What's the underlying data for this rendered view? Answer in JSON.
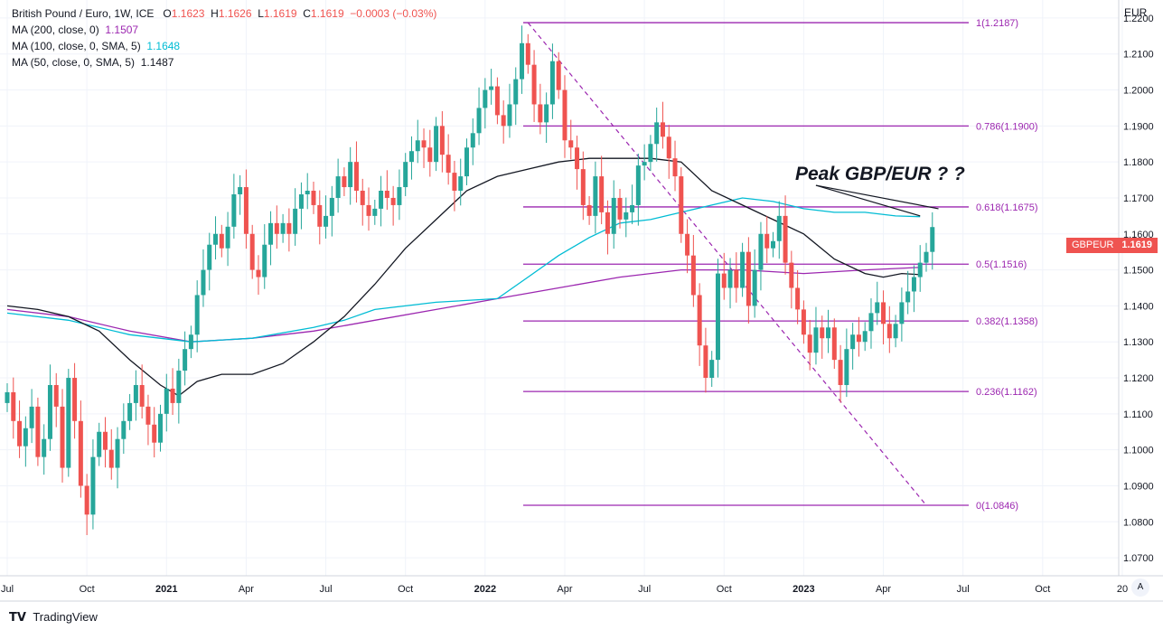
{
  "legend": {
    "symbol": "British Pound / Euro, 1W, ICE",
    "open_k": "O",
    "open_v": "1.1623",
    "high_k": "H",
    "high_v": "1.1626",
    "low_k": "L",
    "low_v": "1.1619",
    "close_k": "C",
    "close_v": "1.1619",
    "change": "−0.0003 (−0.03%)",
    "ma200_label": "MA (200, close, 0)",
    "ma200_value": "1.1507",
    "ma100_label": "MA (100, close, 0, SMA, 5)",
    "ma100_value": "1.1648",
    "ma50_label": "MA (50, close, 0, SMA, 5)",
    "ma50_value": "1.1487"
  },
  "currency": "EUR",
  "price_tag": {
    "name": "GBPEUR",
    "value": "1.1619"
  },
  "annotation": "Peak GBP/EUR ? ?",
  "footer": {
    "brand": "TradingView"
  },
  "colors": {
    "up": "#26a69a",
    "down": "#ef5350",
    "fib": "#9c27b0",
    "ma100": "#00bcd4",
    "ma50": "#131722"
  },
  "chart_data": {
    "type": "candlestick",
    "symbol": "GBPEUR",
    "timeframe": "1W",
    "ylim": [
      1.065,
      1.225
    ],
    "yticks": [
      "1.0700",
      "1.0800",
      "1.0900",
      "1.1000",
      "1.1100",
      "1.1200",
      "1.1300",
      "1.1400",
      "1.1500",
      "1.1600",
      "1.1700",
      "1.1800",
      "1.1900",
      "1.2000",
      "1.2100",
      "1.2200"
    ],
    "xticks": [
      {
        "label": "Jul",
        "week": 0
      },
      {
        "label": "Oct",
        "week": 13
      },
      {
        "label": "2021",
        "week": 26,
        "bold": true
      },
      {
        "label": "Apr",
        "week": 39
      },
      {
        "label": "Jul",
        "week": 52
      },
      {
        "label": "Oct",
        "week": 65
      },
      {
        "label": "2022",
        "week": 78,
        "bold": true
      },
      {
        "label": "Apr",
        "week": 91
      },
      {
        "label": "Jul",
        "week": 104
      },
      {
        "label": "Oct",
        "week": 117
      },
      {
        "label": "2023",
        "week": 130,
        "bold": true
      },
      {
        "label": "Apr",
        "week": 143
      },
      {
        "label": "Jul",
        "week": 156
      },
      {
        "label": "Oct",
        "week": 169
      },
      {
        "label": "20",
        "week": 182
      }
    ],
    "closes": [
      1.116,
      1.108,
      1.101,
      1.106,
      1.112,
      1.098,
      1.103,
      1.118,
      1.112,
      1.095,
      1.12,
      1.108,
      1.09,
      1.082,
      1.098,
      1.105,
      1.1,
      1.095,
      1.103,
      1.108,
      1.113,
      1.118,
      1.112,
      1.107,
      1.102,
      1.11,
      1.117,
      1.113,
      1.122,
      1.128,
      1.132,
      1.143,
      1.15,
      1.157,
      1.16,
      1.156,
      1.162,
      1.171,
      1.173,
      1.16,
      1.15,
      1.148,
      1.157,
      1.163,
      1.16,
      1.163,
      1.16,
      1.167,
      1.171,
      1.172,
      1.168,
      1.162,
      1.165,
      1.17,
      1.176,
      1.173,
      1.18,
      1.172,
      1.168,
      1.165,
      1.167,
      1.172,
      1.17,
      1.168,
      1.173,
      1.18,
      1.183,
      1.186,
      1.184,
      1.18,
      1.19,
      1.182,
      1.177,
      1.172,
      1.176,
      1.184,
      1.188,
      1.195,
      1.2,
      1.201,
      1.193,
      1.19,
      1.196,
      1.203,
      1.213,
      1.207,
      1.196,
      1.191,
      1.196,
      1.208,
      1.2,
      1.186,
      1.184,
      1.178,
      1.168,
      1.165,
      1.176,
      1.166,
      1.16,
      1.17,
      1.164,
      1.166,
      1.168,
      1.179,
      1.18,
      1.185,
      1.191,
      1.187,
      1.181,
      1.176,
      1.16,
      1.154,
      1.143,
      1.129,
      1.12,
      1.125,
      1.149,
      1.145,
      1.15,
      1.145,
      1.155,
      1.14,
      1.15,
      1.16,
      1.156,
      1.158,
      1.165,
      1.152,
      1.145,
      1.139,
      1.132,
      1.127,
      1.134,
      1.131,
      1.134,
      1.125,
      1.118,
      1.128,
      1.132,
      1.13,
      1.133,
      1.138,
      1.141,
      1.135,
      1.131,
      1.135,
      1.141,
      1.144,
      1.148,
      1.152,
      1.155,
      1.1619
    ],
    "fib_levels": [
      {
        "label": "1(1.2187)",
        "value": 1.2187
      },
      {
        "label": "0.786(1.1900)",
        "value": 1.19
      },
      {
        "label": "0.618(1.1675)",
        "value": 1.1675
      },
      {
        "label": "0.5(1.1516)",
        "value": 1.1516
      },
      {
        "label": "0.382(1.1358)",
        "value": 1.1358
      },
      {
        "label": "0.236(1.1162)",
        "value": 1.1162
      },
      {
        "label": "0(1.0846)",
        "value": 1.0846
      }
    ],
    "ma50": [
      [
        0,
        1.14
      ],
      [
        5,
        1.139
      ],
      [
        10,
        1.137
      ],
      [
        15,
        1.133
      ],
      [
        20,
        1.125
      ],
      [
        25,
        1.118
      ],
      [
        28,
        1.115
      ],
      [
        31,
        1.119
      ],
      [
        35,
        1.121
      ],
      [
        40,
        1.121
      ],
      [
        45,
        1.124
      ],
      [
        50,
        1.13
      ],
      [
        55,
        1.137
      ],
      [
        60,
        1.146
      ],
      [
        65,
        1.156
      ],
      [
        70,
        1.164
      ],
      [
        75,
        1.172
      ],
      [
        80,
        1.176
      ],
      [
        85,
        1.178
      ],
      [
        90,
        1.18
      ],
      [
        95,
        1.181
      ],
      [
        100,
        1.181
      ],
      [
        105,
        1.181
      ],
      [
        110,
        1.18
      ],
      [
        115,
        1.172
      ],
      [
        120,
        1.168
      ],
      [
        125,
        1.164
      ],
      [
        130,
        1.16
      ],
      [
        135,
        1.153
      ],
      [
        140,
        1.149
      ],
      [
        143,
        1.148
      ],
      [
        146,
        1.149
      ],
      [
        149,
        1.1487
      ]
    ],
    "ma100": [
      [
        0,
        1.138
      ],
      [
        10,
        1.136
      ],
      [
        20,
        1.132
      ],
      [
        30,
        1.13
      ],
      [
        40,
        1.131
      ],
      [
        50,
        1.134
      ],
      [
        55,
        1.136
      ],
      [
        60,
        1.139
      ],
      [
        70,
        1.141
      ],
      [
        80,
        1.142
      ],
      [
        85,
        1.148
      ],
      [
        90,
        1.154
      ],
      [
        95,
        1.159
      ],
      [
        100,
        1.163
      ],
      [
        105,
        1.164
      ],
      [
        110,
        1.166
      ],
      [
        115,
        1.168
      ],
      [
        120,
        1.17
      ],
      [
        125,
        1.169
      ],
      [
        130,
        1.167
      ],
      [
        135,
        1.166
      ],
      [
        140,
        1.166
      ],
      [
        145,
        1.165
      ],
      [
        149,
        1.1648
      ]
    ],
    "ma200": [
      [
        0,
        1.139
      ],
      [
        10,
        1.137
      ],
      [
        20,
        1.133
      ],
      [
        30,
        1.13
      ],
      [
        40,
        1.131
      ],
      [
        50,
        1.133
      ],
      [
        60,
        1.136
      ],
      [
        70,
        1.139
      ],
      [
        80,
        1.142
      ],
      [
        90,
        1.145
      ],
      [
        100,
        1.148
      ],
      [
        110,
        1.15
      ],
      [
        120,
        1.15
      ],
      [
        130,
        1.149
      ],
      [
        140,
        1.15
      ],
      [
        149,
        1.1507
      ]
    ],
    "trendline": [
      [
        85,
        1.2187
      ],
      [
        150,
        1.0846
      ]
    ],
    "annotation_arrows": [
      [
        [
          132,
          1.1735
        ],
        [
          149,
          1.165
        ]
      ],
      [
        [
          132,
          1.1735
        ],
        [
          152,
          1.167
        ]
      ]
    ]
  }
}
